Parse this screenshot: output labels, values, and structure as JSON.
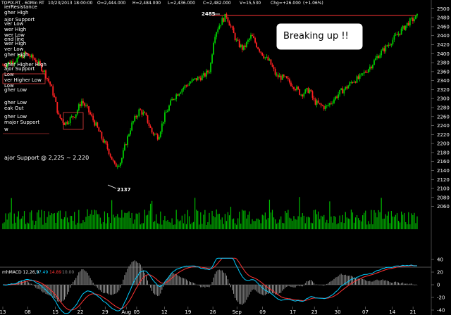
{
  "header": {
    "symbol": "TOPIX.RT - 60Min RT",
    "datetime": "10/23/2013 18:00:00",
    "open": "O=2,444.000",
    "high": "H=2,484.000",
    "low": "L=2,436.000",
    "close": "C=2,482.000",
    "volume": "V=15,530",
    "change": "Chg=+26.000",
    "pct": "(+1.06%)"
  },
  "callout": "Breaking up !!",
  "annotations": {
    "high_label": "2485",
    "low_label": "2137",
    "support_text": "ajor Support @ 2,225 ~ 2,220",
    "left_labels": [
      "ierResistance",
      "gher High",
      "ajor Support",
      "ver Low",
      "wer High",
      "wer Low",
      "end line",
      "wer High",
      "ver Low",
      "gher High",
      "gher Higher High",
      "ajor Support",
      "Low",
      "ver Higher Low",
      "Low",
      "gher Low",
      "gher Low",
      "eak Out",
      "gher Low",
      "major Support",
      "w"
    ]
  },
  "macd": {
    "label": "mhMACD 12,26,9",
    "v1": "17.49",
    "v2": "14.89",
    "v3": "10.00"
  },
  "colors": {
    "up": "#00cc00",
    "down": "#ff2222",
    "resistance": "#ff3333",
    "volume": "#00bb00",
    "macd": "#00ccff",
    "signal": "#ff3333",
    "hist": "#999999",
    "callout_bg": "#ffffff"
  },
  "chart_data": {
    "type": "candlestick",
    "title": "TOPIX.RT - 60Min RT",
    "price_axis": {
      "min": 2050,
      "max": 2510,
      "ticks": [
        2060,
        2080,
        2100,
        2120,
        2140,
        2160,
        2180,
        2200,
        2220,
        2240,
        2260,
        2280,
        2300,
        2320,
        2340,
        2360,
        2380,
        2400,
        2420,
        2440,
        2460,
        2480,
        2500
      ]
    },
    "x_ticks": [
      {
        "label": "13",
        "pos": 0.0
      },
      {
        "label": "08",
        "pos": 0.06
      },
      {
        "label": "15",
        "pos": 0.127
      },
      {
        "label": "22",
        "pos": 0.187
      },
      {
        "label": "29",
        "pos": 0.247
      },
      {
        "label": "Aug",
        "pos": 0.298
      },
      {
        "label": "05",
        "pos": 0.323
      },
      {
        "label": "12",
        "pos": 0.39
      },
      {
        "label": "19",
        "pos": 0.447
      },
      {
        "label": "26",
        "pos": 0.507
      },
      {
        "label": "Sep",
        "pos": 0.565
      },
      {
        "label": "09",
        "pos": 0.627
      },
      {
        "label": "17",
        "pos": 0.7
      },
      {
        "label": "23",
        "pos": 0.752
      },
      {
        "label": "30",
        "pos": 0.808
      },
      {
        "label": "07",
        "pos": 0.875
      },
      {
        "label": "14",
        "pos": 0.94
      },
      {
        "label": "21",
        "pos": 0.99
      }
    ],
    "keypoints": [
      [
        0,
        2375
      ],
      [
        0.03,
        2385
      ],
      [
        0.055,
        2400
      ],
      [
        0.08,
        2385
      ],
      [
        0.1,
        2360
      ],
      [
        0.115,
        2330
      ],
      [
        0.125,
        2300
      ],
      [
        0.135,
        2260
      ],
      [
        0.15,
        2245
      ],
      [
        0.175,
        2265
      ],
      [
        0.19,
        2295
      ],
      [
        0.205,
        2275
      ],
      [
        0.225,
        2240
      ],
      [
        0.24,
        2210
      ],
      [
        0.255,
        2185
      ],
      [
        0.27,
        2150
      ],
      [
        0.285,
        2160
      ],
      [
        0.295,
        2195
      ],
      [
        0.31,
        2240
      ],
      [
        0.33,
        2275
      ],
      [
        0.345,
        2260
      ],
      [
        0.36,
        2225
      ],
      [
        0.375,
        2215
      ],
      [
        0.39,
        2260
      ],
      [
        0.41,
        2300
      ],
      [
        0.43,
        2320
      ],
      [
        0.45,
        2335
      ],
      [
        0.47,
        2345
      ],
      [
        0.485,
        2350
      ],
      [
        0.5,
        2365
      ],
      [
        0.51,
        2440
      ],
      [
        0.52,
        2460
      ],
      [
        0.53,
        2475
      ],
      [
        0.54,
        2485
      ],
      [
        0.55,
        2460
      ],
      [
        0.565,
        2425
      ],
      [
        0.58,
        2410
      ],
      [
        0.6,
        2440
      ],
      [
        0.615,
        2415
      ],
      [
        0.63,
        2395
      ],
      [
        0.645,
        2380
      ],
      [
        0.66,
        2350
      ],
      [
        0.68,
        2345
      ],
      [
        0.7,
        2330
      ],
      [
        0.72,
        2310
      ],
      [
        0.74,
        2320
      ],
      [
        0.75,
        2295
      ],
      [
        0.765,
        2285
      ],
      [
        0.78,
        2280
      ],
      [
        0.8,
        2300
      ],
      [
        0.815,
        2315
      ],
      [
        0.83,
        2325
      ],
      [
        0.845,
        2340
      ],
      [
        0.86,
        2345
      ],
      [
        0.875,
        2360
      ],
      [
        0.89,
        2375
      ],
      [
        0.905,
        2395
      ],
      [
        0.92,
        2410
      ],
      [
        0.935,
        2425
      ],
      [
        0.95,
        2440
      ],
      [
        0.965,
        2455
      ],
      [
        0.98,
        2470
      ],
      [
        1.0,
        2482
      ]
    ],
    "resistance": 2485,
    "support": [
      2225,
      2220
    ],
    "macd_axis": {
      "min": -50,
      "max": 45,
      "ticks": [
        40,
        20,
        0,
        -20,
        -40
      ]
    }
  }
}
